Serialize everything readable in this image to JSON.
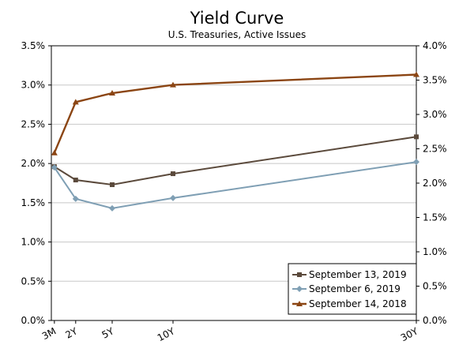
{
  "chart_data": {
    "type": "line",
    "title": "Yield Curve",
    "subtitle": "U.S. Treasuries, Active Issues",
    "xlabel": "",
    "ylabel": "",
    "x_positions_years": [
      0.25,
      2,
      5,
      10,
      30
    ],
    "categories": [
      "3M",
      "2Y",
      "5Y",
      "10Y",
      "30Y"
    ],
    "ylim_left": [
      0,
      3.5
    ],
    "ylim_right": [
      0,
      4.0
    ],
    "left_ticks": [
      "0.0%",
      "0.5%",
      "1.0%",
      "1.5%",
      "2.0%",
      "2.5%",
      "3.0%",
      "3.5%"
    ],
    "right_ticks": [
      "0.0%",
      "0.5%",
      "1.0%",
      "1.5%",
      "2.0%",
      "2.5%",
      "3.0%",
      "3.5%",
      "4.0%"
    ],
    "grid": "horizontal",
    "legend_position": "bottom-right",
    "series": [
      {
        "name": "September 13, 2019",
        "axis": "left",
        "color": "#5b4a3c",
        "marker": "square",
        "values": [
          1.96,
          1.79,
          1.73,
          1.87,
          2.34
        ]
      },
      {
        "name": "September 6, 2019",
        "axis": "left",
        "color": "#7f9fb4",
        "marker": "diamond",
        "values": [
          1.95,
          1.55,
          1.43,
          1.56,
          2.02
        ]
      },
      {
        "name": "September 14, 2018",
        "axis": "right",
        "color": "#8b4513",
        "marker": "triangle",
        "values": [
          2.44,
          3.18,
          3.31,
          3.43,
          3.58
        ]
      }
    ]
  }
}
